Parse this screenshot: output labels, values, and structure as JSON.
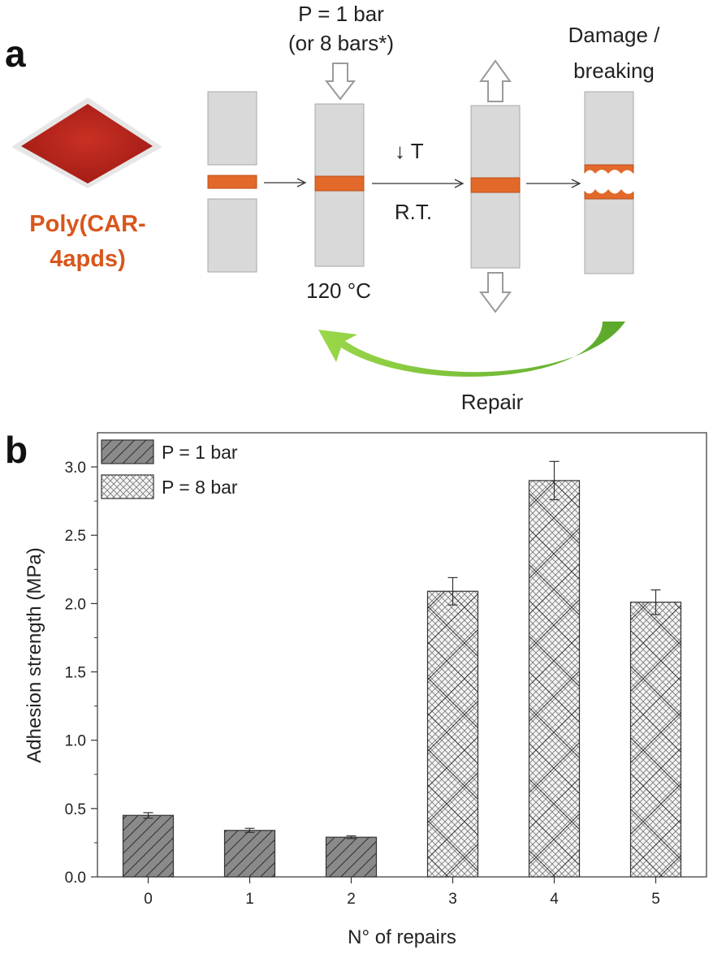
{
  "panel_a": {
    "label": "a",
    "material_line1": "Poly(CAR-",
    "material_line2": "4apds)",
    "pressure_line1": "P = 1 bar",
    "pressure_line2": "(or 8 bars*)",
    "damage_line1": "Damage /",
    "damage_line2": "breaking",
    "temp_down": "↓ T",
    "room_temp": "R.T.",
    "heat_temp": "120 °C",
    "repair": "Repair",
    "colors": {
      "adhesive": "#e2692a",
      "substrate": "#d9d9d9",
      "repair_arrow": "#7cc63a",
      "material": "#b8261c"
    }
  },
  "panel_b": {
    "label": "b"
  },
  "chart_data": {
    "type": "bar",
    "categories": [
      "0",
      "1",
      "2",
      "3",
      "4",
      "5"
    ],
    "values": [
      0.45,
      0.34,
      0.29,
      2.09,
      2.9,
      2.01
    ],
    "errors": [
      0.02,
      0.015,
      0.01,
      0.1,
      0.14,
      0.09
    ],
    "bar_group": [
      "P = 1 bar",
      "P = 1 bar",
      "P = 1 bar",
      "P = 8 bar",
      "P = 8 bar",
      "P = 8 bar"
    ],
    "series": [
      {
        "name": "P = 1 bar",
        "fill": "#8a8a8a",
        "pattern": "diagonal-hatch"
      },
      {
        "name": "P = 8 bar",
        "fill": "#f2f2f2",
        "pattern": "crosshatch"
      }
    ],
    "xlabel": "N° of repairs",
    "ylabel": "Adhesion strength (MPa)",
    "yticks": [
      "0.0",
      "0.5",
      "1.0",
      "1.5",
      "2.0",
      "2.5",
      "3.0"
    ],
    "ylim": [
      0,
      3.25
    ],
    "legend_position": "top-left",
    "grid": false
  }
}
